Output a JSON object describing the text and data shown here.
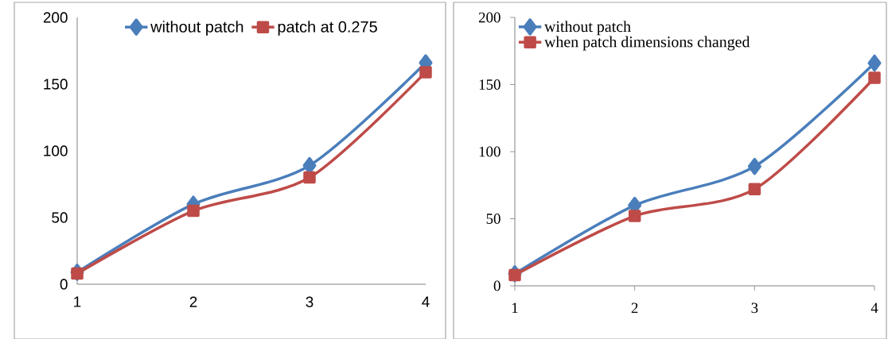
{
  "chart_data": [
    {
      "type": "line",
      "x": [
        1,
        2,
        3,
        4
      ],
      "xlim": [
        1,
        4
      ],
      "xticks": [
        1,
        2,
        3,
        4
      ],
      "ylim": [
        0,
        200
      ],
      "yticks": [
        0,
        50,
        100,
        150,
        200
      ],
      "legend": "top",
      "grid": false,
      "series": [
        {
          "name": "without patch",
          "color": "#4a7ebb",
          "marker": "diamond",
          "values": [
            9,
            60,
            89,
            166
          ]
        },
        {
          "name": "patch at 0.275",
          "color": "#be4b48",
          "marker": "square",
          "values": [
            8,
            55,
            80,
            159
          ]
        }
      ]
    },
    {
      "type": "line",
      "x": [
        1,
        2,
        3,
        4
      ],
      "xlim": [
        1,
        4
      ],
      "xticks": [
        1,
        2,
        3,
        4
      ],
      "ylim": [
        0,
        200
      ],
      "yticks": [
        0,
        50,
        100,
        150,
        200
      ],
      "legend": "top left",
      "grid": false,
      "series": [
        {
          "name": "without patch",
          "color": "#4a7ebb",
          "marker": "diamond",
          "values": [
            9,
            60,
            89,
            166
          ]
        },
        {
          "name": "when patch dimensions changed",
          "color": "#be4b48",
          "marker": "square",
          "values": [
            8,
            52,
            72,
            155
          ]
        }
      ]
    }
  ]
}
